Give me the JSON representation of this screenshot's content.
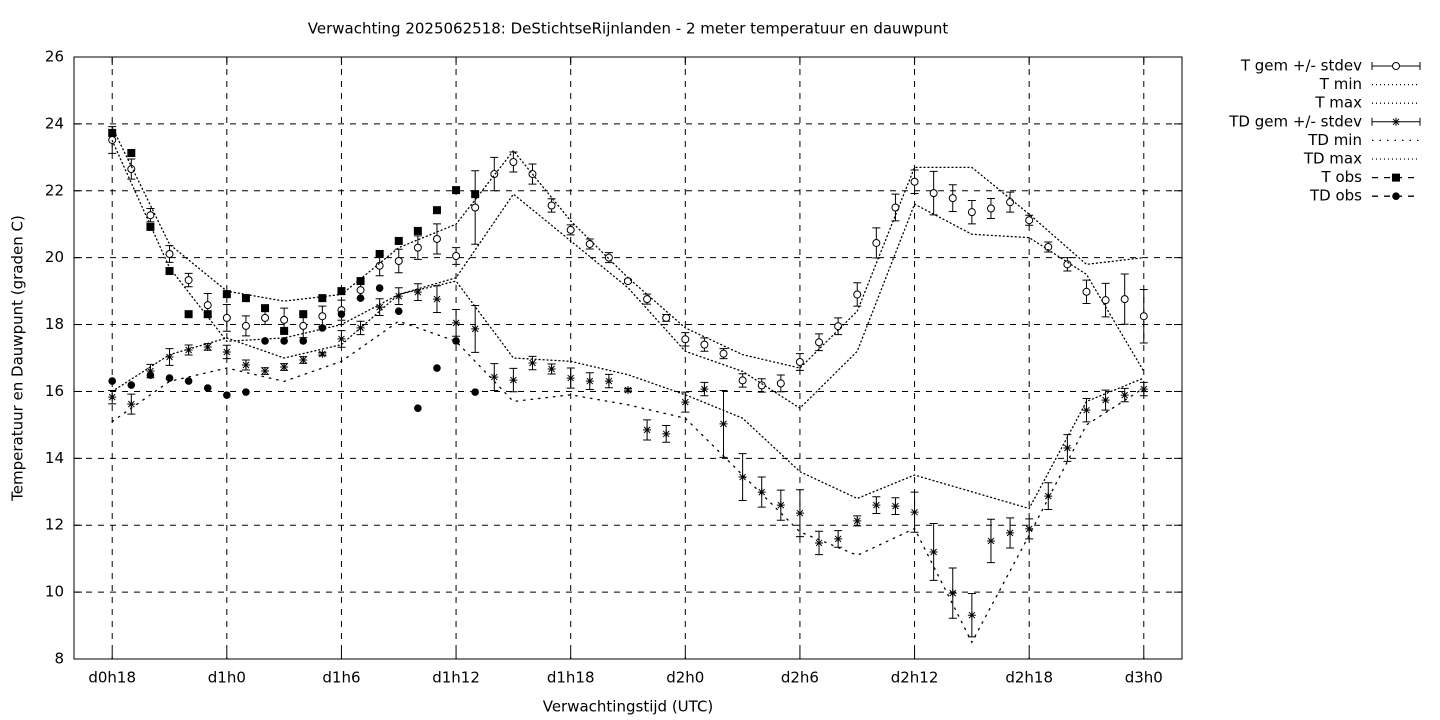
{
  "chart_data": {
    "type": "errorbar-line",
    "title": "Verwachting 2025062518: DeStichtseRijnlanden - 2 meter temperatuur en dauwpunt",
    "xlabel": "Verwachtingstijd (UTC)",
    "ylabel": "Temperatuur en Dauwpunt (graden C)",
    "xlim": [
      16,
      74
    ],
    "xticks": [
      {
        "value": 18,
        "label": "d0h18"
      },
      {
        "value": 24,
        "label": "d1h0"
      },
      {
        "value": 30,
        "label": "d1h6"
      },
      {
        "value": 36,
        "label": "d1h12"
      },
      {
        "value": 42,
        "label": "d1h18"
      },
      {
        "value": 48,
        "label": "d2h0"
      },
      {
        "value": 54,
        "label": "d2h6"
      },
      {
        "value": 60,
        "label": "d2h12"
      },
      {
        "value": 66,
        "label": "d2h18"
      },
      {
        "value": 72,
        "label": "d3h0"
      }
    ],
    "ylim": [
      8,
      26
    ],
    "yticks": [
      8,
      10,
      12,
      14,
      16,
      18,
      20,
      22,
      24,
      26
    ],
    "grid": true,
    "legend": "top right outside",
    "series": [
      {
        "name": "T gem +/- stdev",
        "color": "#000000",
        "style": "errorbars",
        "marker": "circle",
        "x": [
          18,
          19,
          20,
          21,
          22,
          23,
          24,
          25,
          26,
          27,
          28,
          29,
          30,
          31,
          32,
          33,
          34,
          35,
          36,
          37,
          38,
          39,
          40,
          41,
          42,
          43,
          44,
          45,
          46,
          47,
          48,
          49,
          50,
          51,
          52,
          53,
          54,
          55,
          56,
          57,
          58,
          59,
          60,
          61,
          62,
          63,
          64,
          65,
          66,
          67,
          68,
          69,
          70,
          71,
          72
        ],
        "values": [
          23.52,
          22.65,
          21.27,
          20.11,
          19.33,
          18.58,
          18.2,
          17.96,
          18.2,
          18.14,
          17.96,
          18.25,
          18.43,
          19.03,
          19.76,
          19.9,
          20.3,
          20.56,
          20.05,
          21.5,
          22.5,
          22.86,
          22.5,
          21.56,
          20.83,
          20.41,
          20.0,
          19.3,
          18.76,
          18.2,
          17.56,
          17.4,
          17.13,
          16.33,
          16.18,
          16.24,
          16.88,
          17.47,
          17.95,
          18.9,
          20.44,
          21.5,
          22.27,
          21.93,
          21.78,
          21.36,
          21.47,
          21.66,
          21.12,
          20.32,
          19.8,
          18.98,
          18.73,
          18.76,
          18.25
        ],
        "errors": [
          0.4,
          0.3,
          0.2,
          0.25,
          0.2,
          0.35,
          0.4,
          0.3,
          0.2,
          0.35,
          0.35,
          0.3,
          0.3,
          0.25,
          0.3,
          0.35,
          0.35,
          0.45,
          0.25,
          1.1,
          0.5,
          0.3,
          0.3,
          0.2,
          0.15,
          0.15,
          0.15,
          0.05,
          0.15,
          0.1,
          0.2,
          0.2,
          0.15,
          0.2,
          0.2,
          0.25,
          0.25,
          0.25,
          0.25,
          0.35,
          0.45,
          0.4,
          0.35,
          0.65,
          0.4,
          0.35,
          0.3,
          0.3,
          0.15,
          0.15,
          0.2,
          0.35,
          0.5,
          0.75,
          0.8
        ]
      },
      {
        "name": "T min",
        "color": "#000000",
        "style": "dotted",
        "x": [
          18,
          21,
          24,
          27,
          30,
          33,
          36,
          39,
          42,
          45,
          48,
          51,
          54,
          57,
          60,
          63,
          66,
          69,
          72
        ],
        "values": [
          23.5,
          19.7,
          17.5,
          17.6,
          18.0,
          18.9,
          19.4,
          21.9,
          20.5,
          19.1,
          17.2,
          16.6,
          15.5,
          17.2,
          21.6,
          20.7,
          20.6,
          19.5,
          16.6
        ]
      },
      {
        "name": "T max",
        "color": "#000000",
        "style": "dotted",
        "x": [
          18,
          21,
          24,
          27,
          30,
          33,
          36,
          39,
          42,
          45,
          48,
          51,
          54,
          57,
          60,
          63,
          66,
          69,
          72
        ],
        "values": [
          23.9,
          20.4,
          19.0,
          18.7,
          18.9,
          20.3,
          21.0,
          23.2,
          21.1,
          19.4,
          17.9,
          17.1,
          16.7,
          18.4,
          22.7,
          22.7,
          21.3,
          19.8,
          20.0
        ]
      },
      {
        "name": "TD gem +/- stdev",
        "color": "#000000",
        "style": "errorbars",
        "marker": "star",
        "x": [
          18,
          19,
          20,
          21,
          22,
          23,
          24,
          25,
          26,
          27,
          28,
          29,
          30,
          31,
          32,
          33,
          34,
          35,
          36,
          37,
          38,
          39,
          40,
          41,
          42,
          43,
          44,
          45,
          46,
          47,
          48,
          49,
          50,
          51,
          52,
          53,
          54,
          55,
          56,
          57,
          58,
          59,
          60,
          61,
          62,
          63,
          64,
          65,
          66,
          67,
          68,
          69,
          70,
          71,
          72
        ],
        "values": [
          15.83,
          15.62,
          16.61,
          17.03,
          17.24,
          17.33,
          17.18,
          16.79,
          16.61,
          16.73,
          16.94,
          17.12,
          17.57,
          17.9,
          18.52,
          18.85,
          18.97,
          18.76,
          18.05,
          17.87,
          16.43,
          16.34,
          16.85,
          16.67,
          16.4,
          16.31,
          16.31,
          16.04,
          14.85,
          14.73,
          15.68,
          16.07,
          15.03,
          13.44,
          12.99,
          12.6,
          12.36,
          11.47,
          11.59,
          12.13,
          12.6,
          12.57,
          12.39,
          11.2,
          9.97,
          9.31,
          11.53,
          11.77,
          11.89,
          12.87,
          14.31,
          15.44,
          15.74,
          15.89,
          16.07
        ],
        "errors": [
          0.2,
          0.3,
          0.2,
          0.25,
          0.15,
          0.1,
          0.2,
          0.15,
          0.1,
          0.1,
          0.1,
          0.05,
          0.25,
          0.2,
          0.25,
          0.25,
          0.25,
          0.4,
          0.4,
          0.7,
          0.4,
          0.35,
          0.2,
          0.15,
          0.3,
          0.25,
          0.2,
          0.05,
          0.3,
          0.25,
          0.3,
          0.2,
          1.0,
          0.7,
          0.45,
          0.45,
          0.7,
          0.35,
          0.25,
          0.15,
          0.25,
          0.25,
          0.6,
          0.85,
          0.75,
          0.65,
          0.65,
          0.45,
          0.3,
          0.4,
          0.4,
          0.35,
          0.3,
          0.2,
          0.2
        ]
      },
      {
        "name": "TD min",
        "color": "#000000",
        "style": "sparse-dotted",
        "x": [
          18,
          21,
          24,
          27,
          30,
          33,
          36,
          39,
          42,
          45,
          48,
          51,
          54,
          57,
          60,
          63,
          66,
          69,
          72
        ],
        "values": [
          15.1,
          16.3,
          16.7,
          16.3,
          16.9,
          18.1,
          17.5,
          15.7,
          15.9,
          15.6,
          15.2,
          13.5,
          11.8,
          11.1,
          11.9,
          8.5,
          11.7,
          15.0,
          16.1
        ]
      },
      {
        "name": "TD max",
        "color": "#000000",
        "style": "dotted",
        "x": [
          18,
          21,
          24,
          27,
          30,
          33,
          36,
          39,
          42,
          45,
          48,
          51,
          54,
          57,
          60,
          63,
          66,
          69,
          72
        ],
        "values": [
          16.0,
          17.1,
          17.6,
          17.0,
          17.4,
          18.9,
          19.3,
          17.0,
          16.9,
          16.5,
          15.9,
          15.2,
          13.6,
          12.8,
          13.5,
          13.0,
          12.5,
          15.7,
          16.4
        ]
      },
      {
        "name": "T obs",
        "color": "#000000",
        "style": "points",
        "marker": "square",
        "x": [
          18,
          19,
          20,
          21,
          22,
          23,
          24,
          25,
          26,
          27,
          28,
          29,
          30,
          31,
          32,
          33,
          34,
          35,
          36,
          37
        ],
        "values": [
          23.73,
          23.13,
          20.92,
          19.6,
          18.31,
          18.31,
          18.91,
          18.79,
          18.49,
          17.81,
          18.31,
          18.79,
          19.0,
          19.3,
          20.11,
          20.5,
          20.8,
          21.42,
          22.02,
          21.9
        ]
      },
      {
        "name": "TD obs",
        "color": "#000000",
        "style": "points",
        "marker": "dot",
        "x": [
          18,
          19,
          20,
          21,
          22,
          23,
          24,
          25,
          26,
          27,
          28,
          29,
          30,
          31,
          32,
          33,
          34,
          35,
          36,
          37
        ],
        "values": [
          16.31,
          16.19,
          16.49,
          16.4,
          16.31,
          16.1,
          15.89,
          15.98,
          17.51,
          17.51,
          17.51,
          17.9,
          18.31,
          18.79,
          19.09,
          18.4,
          15.5,
          16.7,
          17.51,
          15.98
        ]
      }
    ]
  }
}
